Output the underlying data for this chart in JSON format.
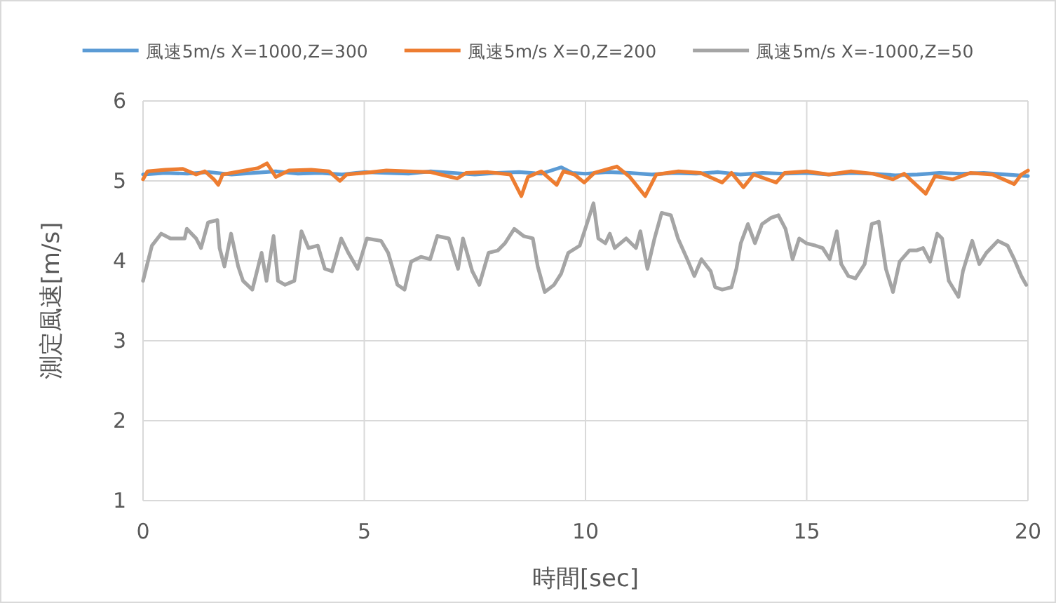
{
  "chart_data": {
    "type": "line",
    "xlabel": "時間[sec]",
    "ylabel": "測定風速[m/s]",
    "xlim": [
      0,
      20
    ],
    "ylim": [
      1,
      6
    ],
    "xticks": [
      0,
      5,
      10,
      15,
      20
    ],
    "yticks": [
      1,
      2,
      3,
      4,
      5,
      6
    ],
    "grid": true,
    "legend": "top",
    "line_style": "solid",
    "series": [
      {
        "name": "風速5m/s X=1000,Z=300",
        "color": "#5b9bd5",
        "x": [
          0,
          0.5,
          1,
          1.5,
          2,
          2.5,
          3,
          3.5,
          4,
          4.5,
          5,
          5.5,
          6,
          6.5,
          7,
          7.5,
          8,
          8.5,
          9,
          9.45,
          9.7,
          10,
          10.5,
          11,
          11.5,
          12,
          12.5,
          13,
          13.5,
          14,
          14.5,
          15,
          15.5,
          16,
          16.5,
          17,
          17.5,
          18,
          18.5,
          19,
          19.5,
          20
        ],
        "values": [
          5.08,
          5.1,
          5.09,
          5.11,
          5.08,
          5.1,
          5.12,
          5.09,
          5.1,
          5.08,
          5.11,
          5.1,
          5.09,
          5.12,
          5.1,
          5.08,
          5.1,
          5.11,
          5.09,
          5.17,
          5.1,
          5.09,
          5.11,
          5.1,
          5.08,
          5.1,
          5.09,
          5.11,
          5.08,
          5.1,
          5.09,
          5.1,
          5.08,
          5.1,
          5.09,
          5.07,
          5.08,
          5.1,
          5.09,
          5.1,
          5.08,
          5.06
        ]
      },
      {
        "name": "風速5m/s X=0,Z=200",
        "color": "#ed7d31",
        "x": [
          0,
          0.1,
          0.5,
          0.9,
          1.2,
          1.4,
          1.6,
          1.7,
          1.8,
          2.2,
          2.6,
          2.8,
          3.0,
          3.3,
          3.8,
          4.2,
          4.45,
          4.6,
          5.0,
          5.5,
          6.0,
          6.5,
          7.1,
          7.3,
          7.8,
          8.3,
          8.55,
          8.7,
          9.0,
          9.35,
          9.5,
          9.75,
          9.97,
          10.2,
          10.71,
          11.0,
          11.35,
          11.6,
          12.1,
          12.6,
          13.09,
          13.3,
          13.57,
          13.8,
          14.31,
          14.5,
          15.0,
          15.5,
          16.0,
          16.5,
          16.95,
          17.2,
          17.69,
          17.9,
          18.3,
          18.7,
          19.2,
          19.69,
          19.85,
          20
        ],
        "values": [
          5.02,
          5.12,
          5.14,
          5.15,
          5.08,
          5.12,
          5.02,
          4.95,
          5.08,
          5.12,
          5.16,
          5.22,
          5.05,
          5.13,
          5.14,
          5.12,
          5.0,
          5.08,
          5.1,
          5.13,
          5.12,
          5.11,
          5.03,
          5.1,
          5.11,
          5.08,
          4.81,
          5.05,
          5.12,
          4.95,
          5.12,
          5.08,
          4.98,
          5.1,
          5.18,
          5.05,
          4.81,
          5.08,
          5.12,
          5.1,
          4.98,
          5.1,
          4.92,
          5.08,
          4.98,
          5.1,
          5.12,
          5.08,
          5.12,
          5.09,
          5.02,
          5.09,
          4.84,
          5.06,
          5.02,
          5.1,
          5.08,
          4.96,
          5.08,
          5.13
        ]
      },
      {
        "name": "風速5m/s X=-1000,Z=50",
        "color": "#a5a5a5",
        "x": [
          0,
          0.2,
          0.41,
          0.62,
          0.94,
          0.99,
          1.2,
          1.31,
          1.47,
          1.68,
          1.73,
          1.84,
          1.99,
          2.15,
          2.26,
          2.47,
          2.68,
          2.79,
          2.95,
          3.05,
          3.21,
          3.42,
          3.58,
          3.74,
          3.95,
          4.11,
          4.27,
          4.48,
          4.64,
          4.85,
          5.06,
          5.38,
          5.54,
          5.75,
          5.91,
          6.06,
          6.28,
          6.49,
          6.65,
          6.91,
          7.12,
          7.23,
          7.44,
          7.6,
          7.81,
          8.02,
          8.18,
          8.39,
          8.6,
          8.81,
          8.92,
          9.08,
          9.29,
          9.45,
          9.61,
          9.87,
          10.03,
          10.18,
          10.29,
          10.45,
          10.55,
          10.66,
          10.92,
          11.14,
          11.24,
          11.4,
          11.56,
          11.72,
          11.93,
          12.09,
          12.3,
          12.46,
          12.62,
          12.83,
          12.93,
          13.09,
          13.3,
          13.41,
          13.51,
          13.67,
          13.83,
          13.99,
          14.2,
          14.36,
          14.52,
          14.68,
          14.83,
          14.99,
          15.2,
          15.36,
          15.52,
          15.68,
          15.78,
          15.94,
          16.1,
          16.31,
          16.47,
          16.63,
          16.79,
          16.95,
          17.1,
          17.32,
          17.48,
          17.63,
          17.79,
          17.95,
          18.06,
          18.21,
          18.43,
          18.53,
          18.74,
          18.9,
          19.06,
          19.32,
          19.54,
          19.69,
          19.85,
          19.96
        ],
        "values": [
          3.75,
          4.19,
          4.34,
          4.28,
          4.28,
          4.4,
          4.28,
          4.16,
          4.48,
          4.51,
          4.16,
          3.93,
          4.34,
          3.93,
          3.75,
          3.64,
          4.1,
          3.75,
          4.31,
          3.75,
          3.7,
          3.75,
          4.37,
          4.16,
          4.19,
          3.9,
          3.87,
          4.28,
          4.1,
          3.9,
          4.28,
          4.25,
          4.1,
          3.7,
          3.64,
          3.99,
          4.05,
          4.02,
          4.31,
          4.28,
          3.9,
          4.28,
          3.87,
          3.7,
          4.1,
          4.13,
          4.22,
          4.4,
          4.31,
          4.28,
          3.93,
          3.61,
          3.7,
          3.84,
          4.1,
          4.19,
          4.46,
          4.72,
          4.28,
          4.22,
          4.34,
          4.16,
          4.28,
          4.16,
          4.37,
          3.9,
          4.28,
          4.6,
          4.57,
          4.28,
          4.02,
          3.81,
          4.02,
          3.87,
          3.67,
          3.64,
          3.67,
          3.9,
          4.22,
          4.46,
          4.22,
          4.46,
          4.54,
          4.57,
          4.4,
          4.02,
          4.28,
          4.22,
          4.19,
          4.16,
          4.02,
          4.37,
          3.96,
          3.81,
          3.78,
          3.96,
          4.46,
          4.49,
          3.9,
          3.61,
          3.99,
          4.13,
          4.13,
          4.16,
          3.99,
          4.34,
          4.28,
          3.75,
          3.55,
          3.87,
          4.25,
          3.96,
          4.1,
          4.25,
          4.19,
          4.02,
          3.81,
          3.7
        ]
      }
    ]
  }
}
